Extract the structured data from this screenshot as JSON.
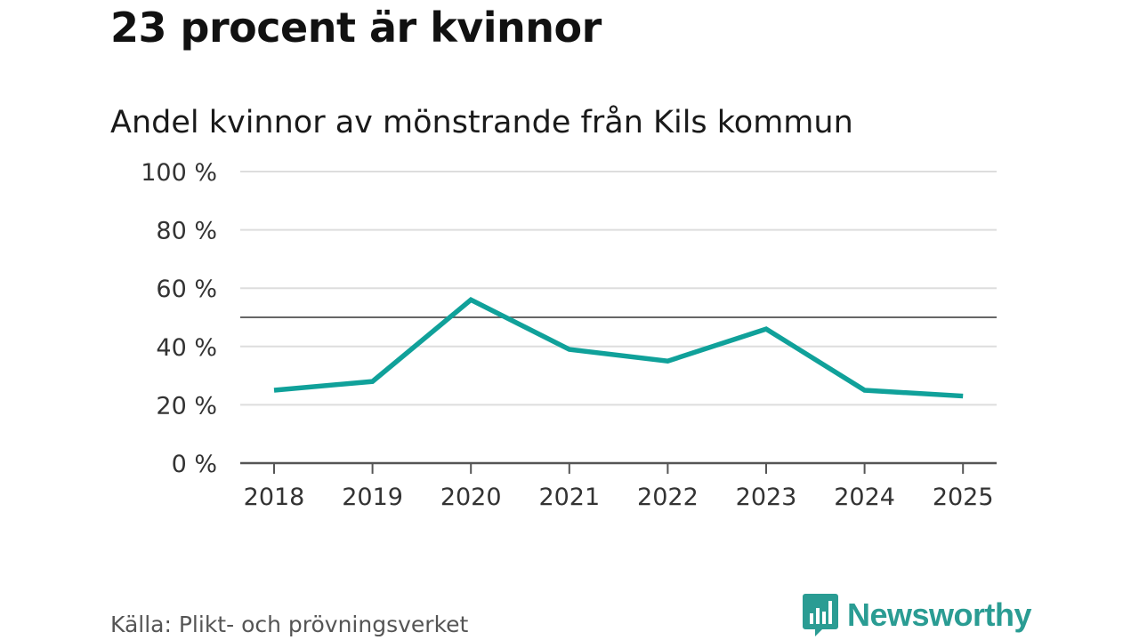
{
  "title": "23 procent är kvinnor",
  "chart_data": {
    "type": "line",
    "title": "Andel kvinnor av mönstrande från Kils kommun",
    "xlabel": "",
    "ylabel": "",
    "categories": [
      "2018",
      "2019",
      "2020",
      "2021",
      "2022",
      "2023",
      "2024",
      "2025"
    ],
    "series": [
      {
        "name": "Andel kvinnor",
        "values": [
          25,
          28,
          56,
          39,
          35,
          46,
          25,
          23
        ],
        "color": "#10a19a"
      }
    ],
    "reference_line": 50,
    "ylim": [
      0,
      100
    ],
    "yticks": [
      0,
      20,
      40,
      60,
      80,
      100
    ],
    "ytick_labels": [
      "0 %",
      "20 %",
      "40 %",
      "60 %",
      "80 %",
      "100 %"
    ],
    "grid": true
  },
  "source": "Källa: Plikt- och prövningsverket",
  "brand": {
    "name": "Newsworthy",
    "color": "#2a9c93"
  },
  "colors": {
    "grid": "#dddddd",
    "axis": "#555555",
    "reference": "#666666"
  }
}
